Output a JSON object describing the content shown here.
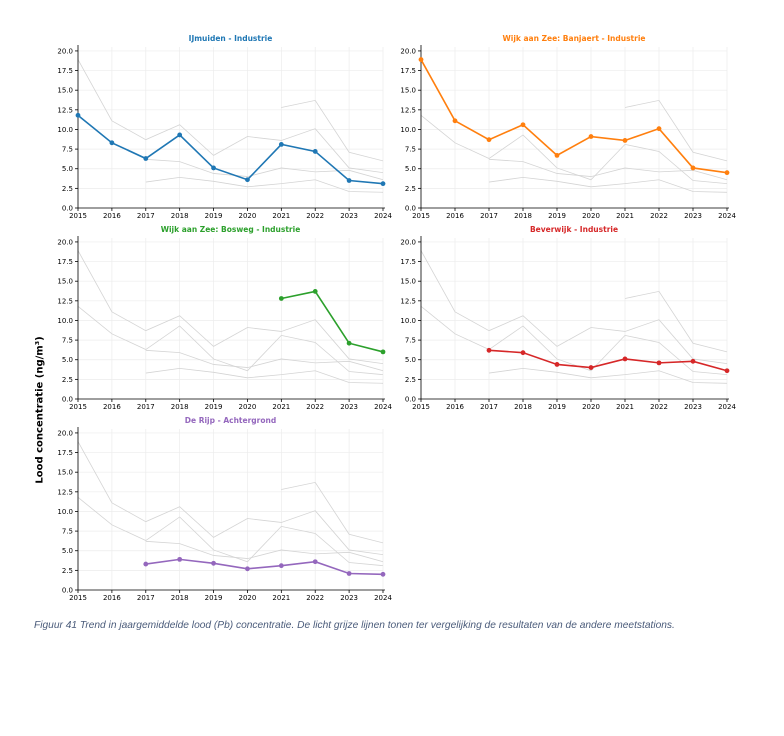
{
  "figure": {
    "ylabel": "Lood concentratie (ng/m³)",
    "caption": "Figuur 41 Trend in jaargemiddelde lood (Pb) concentratie. De licht grijze lijnen tonen ter vergelijking de resultaten van de andere meetstations."
  },
  "chart_data": [
    {
      "type": "line",
      "title": "IJmuiden - Industrie",
      "color": "#1f77b4",
      "x": [
        2015,
        2016,
        2017,
        2018,
        2019,
        2020,
        2021,
        2022,
        2023,
        2024
      ],
      "values": [
        11.8,
        8.3,
        6.3,
        9.3,
        5.1,
        3.6,
        8.1,
        7.2,
        3.5,
        3.1
      ],
      "xlabel": "",
      "ylabel": "Lood concentratie (ng/m³)",
      "ylim": [
        0,
        20.5
      ],
      "yticks": [
        "0.0",
        "2.5",
        "5.0",
        "7.5",
        "10.0",
        "12.5",
        "15.0",
        "17.5",
        "20.0"
      ],
      "xticks": [
        "2015",
        "2016",
        "2017",
        "2018",
        "2019",
        "2020",
        "2021",
        "2022",
        "2023",
        "2024"
      ],
      "background_series": "other stations (light grey)"
    },
    {
      "type": "line",
      "title": "Wijk aan Zee: Banjaert - Industrie",
      "color": "#ff7f0e",
      "x": [
        2015,
        2016,
        2017,
        2018,
        2019,
        2020,
        2021,
        2022,
        2023,
        2024
      ],
      "values": [
        18.9,
        11.1,
        8.7,
        10.6,
        6.7,
        9.1,
        8.6,
        10.1,
        5.1,
        4.5
      ],
      "xlabel": "",
      "ylabel": "Lood concentratie (ng/m³)",
      "ylim": [
        0,
        20.5
      ],
      "yticks": [
        "0.0",
        "2.5",
        "5.0",
        "7.5",
        "10.0",
        "12.5",
        "15.0",
        "17.5",
        "20.0"
      ],
      "xticks": [
        "2015",
        "2016",
        "2017",
        "2018",
        "2019",
        "2020",
        "2021",
        "2022",
        "2023",
        "2024"
      ],
      "background_series": "other stations (light grey)"
    },
    {
      "type": "line",
      "title": "Wijk aan Zee: Bosweg - Industrie",
      "color": "#2ca02c",
      "x": [
        2021,
        2022,
        2023,
        2024
      ],
      "values": [
        12.8,
        13.7,
        7.1,
        6.0
      ],
      "xlabel": "",
      "ylabel": "Lood concentratie (ng/m³)",
      "ylim": [
        0,
        20.5
      ],
      "yticks": [
        "0.0",
        "2.5",
        "5.0",
        "7.5",
        "10.0",
        "12.5",
        "15.0",
        "17.5",
        "20.0"
      ],
      "xticks": [
        "2015",
        "2016",
        "2017",
        "2018",
        "2019",
        "2020",
        "2021",
        "2022",
        "2023",
        "2024"
      ],
      "background_series": "other stations (light grey)"
    },
    {
      "type": "line",
      "title": "Beverwijk - Industrie",
      "color": "#d62728",
      "x": [
        2017,
        2018,
        2019,
        2020,
        2021,
        2022,
        2023,
        2024
      ],
      "values": [
        6.2,
        5.9,
        4.4,
        4.0,
        5.1,
        4.6,
        4.8,
        3.6
      ],
      "xlabel": "",
      "ylabel": "Lood concentratie (ng/m³)",
      "ylim": [
        0,
        20.5
      ],
      "yticks": [
        "0.0",
        "2.5",
        "5.0",
        "7.5",
        "10.0",
        "12.5",
        "15.0",
        "17.5",
        "20.0"
      ],
      "xticks": [
        "2015",
        "2016",
        "2017",
        "2018",
        "2019",
        "2020",
        "2021",
        "2022",
        "2023",
        "2024"
      ],
      "background_series": "other stations (light grey)"
    },
    {
      "type": "line",
      "title": "De Rijp - Achtergrond",
      "color": "#9467bd",
      "x": [
        2017,
        2018,
        2019,
        2020,
        2021,
        2022,
        2023,
        2024
      ],
      "values": [
        3.3,
        3.9,
        3.4,
        2.7,
        3.1,
        3.6,
        2.1,
        2.0
      ],
      "xlabel": "",
      "ylabel": "Lood concentratie (ng/m³)",
      "ylim": [
        0,
        20.5
      ],
      "yticks": [
        "0.0",
        "2.5",
        "5.0",
        "7.5",
        "10.0",
        "12.5",
        "15.0",
        "17.5",
        "20.0"
      ],
      "xticks": [
        "2015",
        "2016",
        "2017",
        "2018",
        "2019",
        "2020",
        "2021",
        "2022",
        "2023",
        "2024"
      ],
      "background_series": "other stations (light grey)"
    }
  ]
}
